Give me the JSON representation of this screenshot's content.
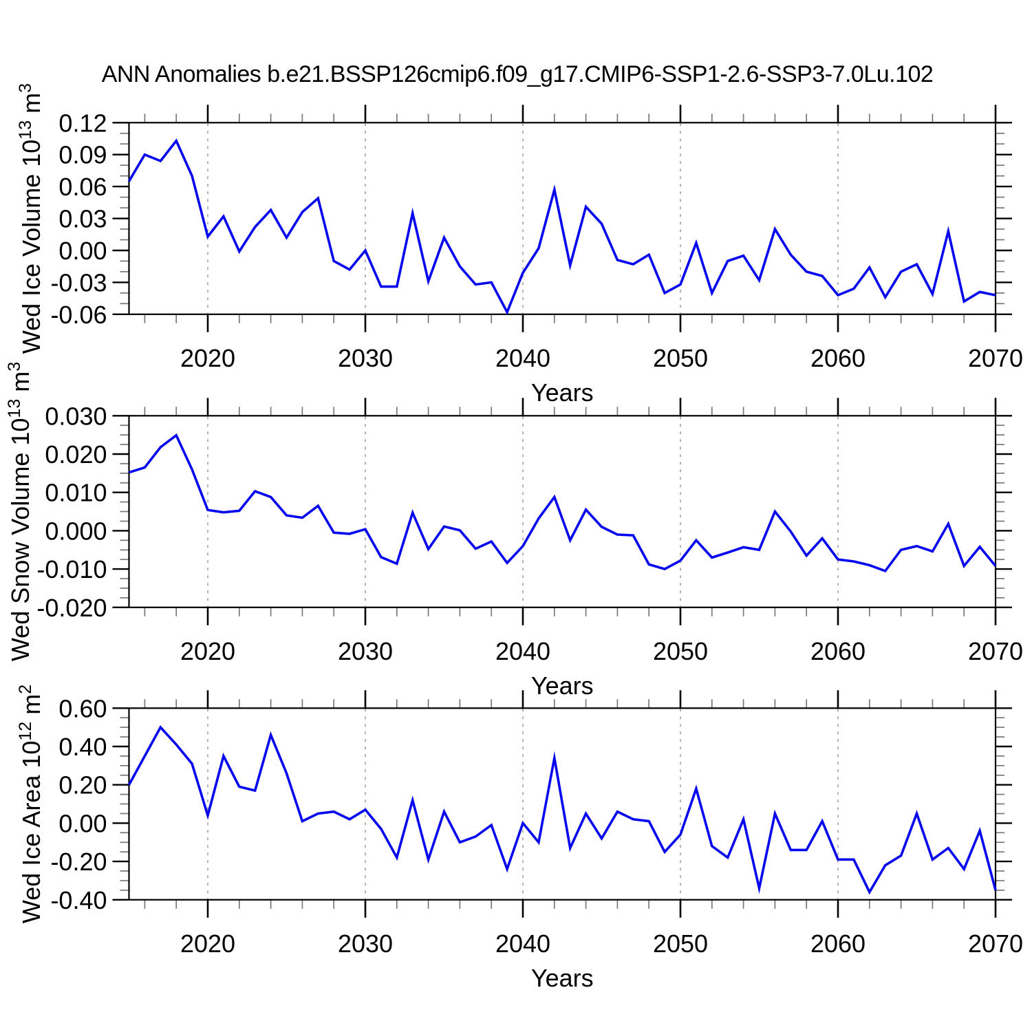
{
  "title": "ANN Anomalies b.e21.BSSP126cmip6.f09_g17.CMIP6-SSP1-2.6-SSP3-7.0Lu.102",
  "xlabel": "Years",
  "line_color": "#0606EE",
  "grid_color": "#8a8a8a",
  "axis_color": "#000000",
  "minor_tick_color": "#777777",
  "xlim": [
    2015,
    2070
  ],
  "x_tick_years": [
    2020,
    2030,
    2040,
    2050,
    2060,
    2070
  ],
  "x_tick_labels": [
    "2020",
    "2030",
    "2040",
    "2050",
    "2060",
    "2070"
  ],
  "x_minor_step": 2,
  "grid_years": [
    2020,
    2030,
    2040,
    2050,
    2060
  ],
  "years": [
    2015,
    2016,
    2017,
    2018,
    2019,
    2020,
    2021,
    2022,
    2023,
    2024,
    2025,
    2026,
    2027,
    2028,
    2029,
    2030,
    2031,
    2032,
    2033,
    2034,
    2035,
    2036,
    2037,
    2038,
    2039,
    2040,
    2041,
    2042,
    2043,
    2044,
    2045,
    2046,
    2047,
    2048,
    2049,
    2050,
    2051,
    2052,
    2053,
    2054,
    2055,
    2056,
    2057,
    2058,
    2059,
    2060,
    2061,
    2062,
    2063,
    2064,
    2065,
    2066,
    2067,
    2068,
    2069,
    2070
  ],
  "chart_data": [
    {
      "type": "line",
      "name": "wed-ice-volume",
      "ylabel_text": "Wed Ice Volume 10^13 m^3",
      "ylabel_parts": [
        {
          "t": "Wed Ice Volume 10"
        },
        {
          "t": "13",
          "sup": true
        },
        {
          "t": " m"
        },
        {
          "t": "3",
          "sup": true
        }
      ],
      "xlabel": "Years",
      "ylim": [
        -0.06,
        0.12
      ],
      "y_major_values": [
        0.12,
        0.09,
        0.06,
        0.03,
        0.0,
        -0.03,
        -0.06
      ],
      "y_tick_labels": [
        "0.12",
        "0.09",
        "0.06",
        "0.03",
        "0.00",
        "-0.03",
        "-0.06"
      ],
      "y_minor_step": 0.01,
      "values": [
        0.065,
        0.09,
        0.084,
        0.103,
        0.07,
        0.013,
        0.032,
        -0.001,
        0.022,
        0.038,
        0.012,
        0.036,
        0.049,
        -0.01,
        -0.018,
        0.0,
        -0.034,
        -0.034,
        0.035,
        -0.029,
        0.012,
        -0.015,
        -0.032,
        -0.03,
        -0.058,
        -0.021,
        0.002,
        0.057,
        -0.014,
        0.041,
        0.025,
        -0.009,
        -0.013,
        -0.004,
        -0.04,
        -0.032,
        0.007,
        -0.04,
        -0.01,
        -0.005,
        -0.028,
        0.02,
        -0.004,
        -0.02,
        -0.024,
        -0.042,
        -0.036,
        -0.016,
        -0.044,
        -0.02,
        -0.013,
        -0.041,
        0.018,
        -0.048,
        -0.039,
        -0.042
      ]
    },
    {
      "type": "line",
      "name": "wed-snow-volume",
      "ylabel_text": "Wed Snow Volume 10^13 m^3",
      "ylabel_parts": [
        {
          "t": "Wed Snow Volume 10"
        },
        {
          "t": "13",
          "sup": true
        },
        {
          "t": " m"
        },
        {
          "t": "3",
          "sup": true
        }
      ],
      "xlabel": "Years",
      "ylim": [
        -0.02,
        0.03
      ],
      "y_major_values": [
        0.03,
        0.02,
        0.01,
        0.0,
        -0.01,
        -0.02
      ],
      "y_tick_labels": [
        "0.030",
        "0.020",
        "0.010",
        "0.000",
        "-0.010",
        "-0.020"
      ],
      "y_minor_step": 0.0025,
      "values": [
        0.0152,
        0.0165,
        0.0218,
        0.0249,
        0.016,
        0.0054,
        0.0048,
        0.0052,
        0.0103,
        0.0088,
        0.004,
        0.0034,
        0.0065,
        -0.0005,
        -0.0008,
        0.0004,
        -0.0069,
        -0.0086,
        0.0047,
        -0.0048,
        0.0011,
        0.0001,
        -0.0047,
        -0.0028,
        -0.0084,
        -0.004,
        0.0032,
        0.0088,
        -0.0025,
        0.0055,
        0.001,
        -0.001,
        -0.0012,
        -0.0088,
        -0.01,
        -0.0078,
        -0.0025,
        -0.007,
        -0.0057,
        -0.0043,
        -0.005,
        0.005,
        -0.0002,
        -0.0065,
        -0.002,
        -0.0075,
        -0.008,
        -0.009,
        -0.0105,
        -0.005,
        -0.004,
        -0.0054,
        0.0018,
        -0.0092,
        -0.0042,
        -0.0092
      ]
    },
    {
      "type": "line",
      "name": "wed-ice-area",
      "ylabel_text": "Wed Ice Area 10^12 m^2",
      "ylabel_parts": [
        {
          "t": "Wed Ice Area 10"
        },
        {
          "t": "12",
          "sup": true
        },
        {
          "t": " m"
        },
        {
          "t": "2",
          "sup": true
        }
      ],
      "xlabel": "Years",
      "ylim": [
        -0.4,
        0.6
      ],
      "y_major_values": [
        0.6,
        0.4,
        0.2,
        0.0,
        -0.2,
        -0.4
      ],
      "y_tick_labels": [
        "0.60",
        "0.40",
        "0.20",
        "0.00",
        "-0.20",
        "-0.40"
      ],
      "y_minor_step": 0.05,
      "values": [
        0.2,
        0.35,
        0.5,
        0.41,
        0.31,
        0.04,
        0.35,
        0.19,
        0.17,
        0.46,
        0.26,
        0.01,
        0.05,
        0.06,
        0.02,
        0.07,
        -0.03,
        -0.18,
        0.12,
        -0.19,
        0.06,
        -0.1,
        -0.07,
        -0.01,
        -0.24,
        0.0,
        -0.1,
        0.34,
        -0.13,
        0.05,
        -0.08,
        0.06,
        0.02,
        0.01,
        -0.15,
        -0.06,
        0.18,
        -0.12,
        -0.18,
        0.02,
        -0.34,
        0.05,
        -0.14,
        -0.14,
        0.01,
        -0.19,
        -0.19,
        -0.36,
        -0.22,
        -0.17,
        0.05,
        -0.19,
        -0.13,
        -0.24,
        -0.04,
        -0.35
      ]
    }
  ]
}
